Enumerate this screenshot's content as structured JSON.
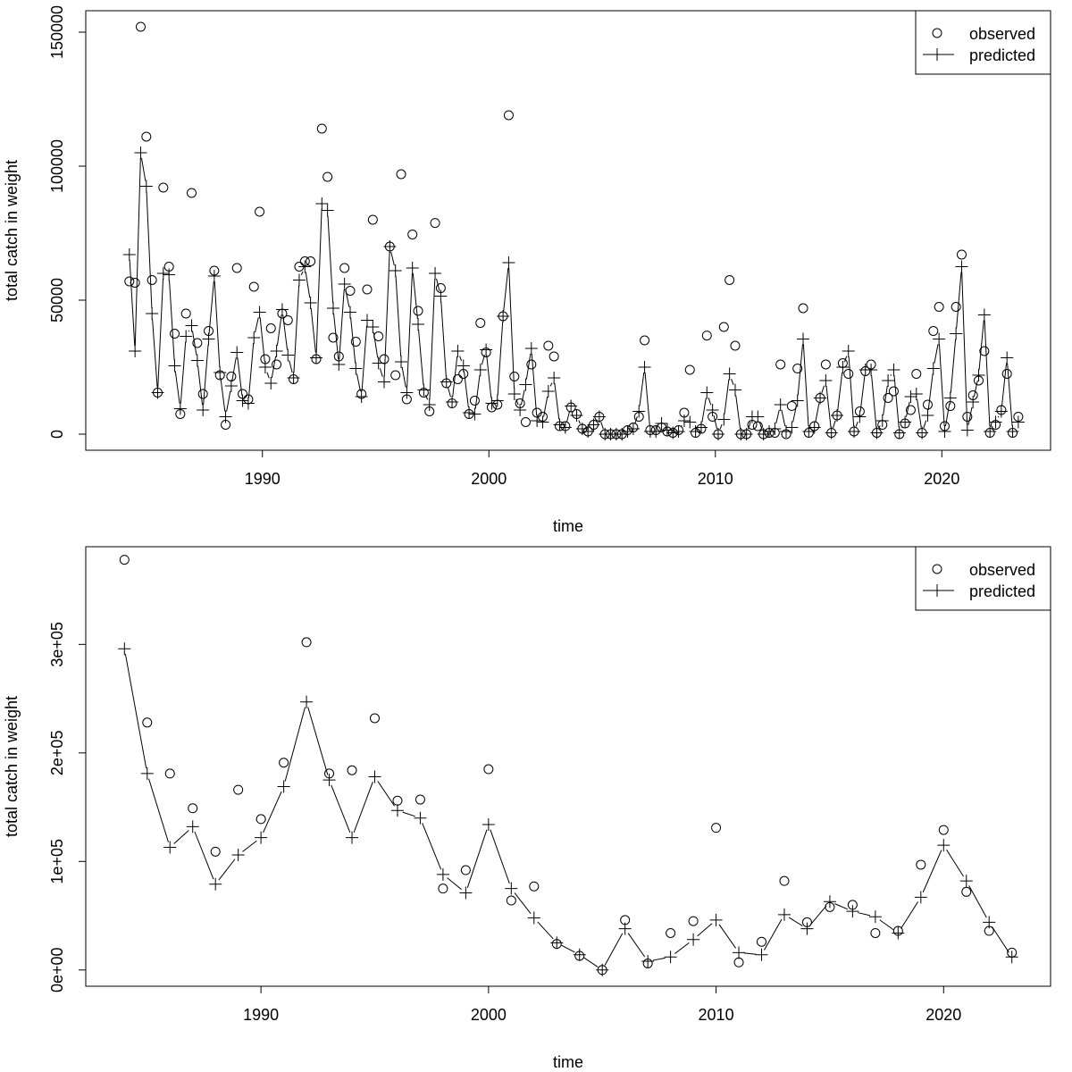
{
  "chart_data": [
    {
      "type": "line",
      "ylabel": "total catch in weight",
      "xlabel": "time",
      "xlim": [
        1982.2,
        2024.8
      ],
      "ylim": [
        -6000,
        158000
      ],
      "x_ticks": [
        1990,
        2000,
        2010,
        2020
      ],
      "x_tick_labels": [
        "1990",
        "2000",
        "2010",
        "2020"
      ],
      "y_ticks": [
        0,
        50000,
        100000,
        150000
      ],
      "y_tick_labels": [
        "0",
        "50000",
        "100000",
        "150000"
      ],
      "legend": {
        "position": "top-right",
        "entries": [
          {
            "label": "observed",
            "marker": "circle",
            "line": false
          },
          {
            "label": "predicted",
            "marker": "plus",
            "line": true
          }
        ]
      },
      "series": [
        {
          "name": "observed",
          "marker": "circle",
          "x": [
            1984.125,
            1984.375,
            1984.625,
            1984.875,
            1985.125,
            1985.375,
            1985.625,
            1985.875,
            1986.125,
            1986.375,
            1986.625,
            1986.875,
            1987.125,
            1987.375,
            1987.625,
            1987.875,
            1988.125,
            1988.375,
            1988.625,
            1988.875,
            1989.125,
            1989.375,
            1989.625,
            1989.875,
            1990.125,
            1990.375,
            1990.625,
            1990.875,
            1991.125,
            1991.375,
            1991.625,
            1991.875,
            1992.125,
            1992.375,
            1992.625,
            1992.875,
            1993.125,
            1993.375,
            1993.625,
            1993.875,
            1994.125,
            1994.375,
            1994.625,
            1994.875,
            1995.125,
            1995.375,
            1995.625,
            1995.875,
            1996.125,
            1996.375,
            1996.625,
            1996.875,
            1997.125,
            1997.375,
            1997.625,
            1997.875,
            1998.125,
            1998.375,
            1998.625,
            1998.875,
            1999.125,
            1999.375,
            1999.625,
            1999.875,
            2000.125,
            2000.375,
            2000.625,
            2000.875,
            2001.125,
            2001.375,
            2001.625,
            2001.875,
            2002.125,
            2002.375,
            2002.625,
            2002.875,
            2003.125,
            2003.375,
            2003.625,
            2003.875,
            2004.125,
            2004.375,
            2004.625,
            2004.875,
            2005.125,
            2005.375,
            2005.625,
            2005.875,
            2006.125,
            2006.375,
            2006.625,
            2006.875,
            2007.125,
            2007.375,
            2007.625,
            2007.875,
            2008.125,
            2008.375,
            2008.625,
            2008.875,
            2009.125,
            2009.375,
            2009.625,
            2009.875,
            2010.125,
            2010.375,
            2010.625,
            2010.875,
            2011.125,
            2011.375,
            2011.625,
            2011.875,
            2012.125,
            2012.375,
            2012.625,
            2012.875,
            2013.125,
            2013.375,
            2013.625,
            2013.875,
            2014.125,
            2014.375,
            2014.625,
            2014.875,
            2015.125,
            2015.375,
            2015.625,
            2015.875,
            2016.125,
            2016.375,
            2016.625,
            2016.875,
            2017.125,
            2017.375,
            2017.625,
            2017.875,
            2018.125,
            2018.375,
            2018.625,
            2018.875,
            2019.125,
            2019.375,
            2019.625,
            2019.875,
            2020.125,
            2020.375,
            2020.625,
            2020.875,
            2021.125,
            2021.375,
            2021.625,
            2021.875,
            2022.125,
            2022.375,
            2022.625,
            2022.875,
            2023.125,
            2023.375
          ],
          "y": [
            57000,
            56500,
            152000,
            111000,
            57500,
            15500,
            92000,
            62500,
            37500,
            7500,
            45000,
            90000,
            34000,
            15000,
            38500,
            61000,
            22000,
            3500,
            21500,
            62000,
            15000,
            13000,
            55000,
            83000,
            28000,
            39500,
            26000,
            45000,
            42500,
            20500,
            62500,
            64500,
            64500,
            28000,
            114000,
            96000,
            36000,
            29000,
            62000,
            53500,
            34500,
            15000,
            54000,
            80000,
            36500,
            28000,
            70000,
            22000,
            97000,
            13000,
            74500,
            46000,
            15500,
            8500,
            78800,
            54500,
            19000,
            11500,
            20500,
            22500,
            7500,
            12500,
            41500,
            30500,
            10000,
            11000,
            44000,
            119000,
            21500,
            11500,
            4500,
            26000,
            8000,
            6500,
            33000,
            29000,
            3000,
            3000,
            10000,
            7500,
            2000,
            1000,
            3500,
            6500,
            0,
            0,
            0,
            0,
            1500,
            2500,
            6500,
            35000,
            1500,
            1500,
            2500,
            1000,
            500,
            1500,
            8000,
            24000,
            500,
            2000,
            36800,
            6500,
            0,
            40000,
            57500,
            33000,
            0,
            0,
            3500,
            3000,
            0,
            500,
            500,
            26000,
            0,
            10500,
            24500,
            47000,
            500,
            3000,
            13500,
            26000,
            500,
            7000,
            26500,
            22500,
            1000,
            8500,
            23500,
            26000,
            500,
            3500,
            13500,
            16000,
            0,
            4000,
            9000,
            22500,
            500,
            11000,
            38500,
            47500,
            3000,
            10500,
            47500,
            67000,
            6500,
            14500,
            20000,
            31000,
            500,
            3500,
            9000,
            22500,
            500,
            6500
          ],
          "color": "#000000"
        },
        {
          "name": "predicted",
          "marker": "plus",
          "x": [
            1984.125,
            1984.375,
            1984.625,
            1984.875,
            1985.125,
            1985.375,
            1985.625,
            1985.875,
            1986.125,
            1986.375,
            1986.625,
            1986.875,
            1987.125,
            1987.375,
            1987.625,
            1987.875,
            1988.125,
            1988.375,
            1988.625,
            1988.875,
            1989.125,
            1989.375,
            1989.625,
            1989.875,
            1990.125,
            1990.375,
            1990.625,
            1990.875,
            1991.125,
            1991.375,
            1991.625,
            1991.875,
            1992.125,
            1992.375,
            1992.625,
            1992.875,
            1993.125,
            1993.375,
            1993.625,
            1993.875,
            1994.125,
            1994.375,
            1994.625,
            1994.875,
            1995.125,
            1995.375,
            1995.625,
            1995.875,
            1996.125,
            1996.375,
            1996.625,
            1996.875,
            1997.125,
            1997.375,
            1997.625,
            1997.875,
            1998.125,
            1998.375,
            1998.625,
            1998.875,
            1999.125,
            1999.375,
            1999.625,
            1999.875,
            2000.125,
            2000.375,
            2000.625,
            2000.875,
            2001.125,
            2001.375,
            2001.625,
            2001.875,
            2002.125,
            2002.375,
            2002.625,
            2002.875,
            2003.125,
            2003.375,
            2003.625,
            2003.875,
            2004.125,
            2004.375,
            2004.625,
            2004.875,
            2005.125,
            2005.375,
            2005.625,
            2005.875,
            2006.125,
            2006.375,
            2006.625,
            2006.875,
            2007.125,
            2007.375,
            2007.625,
            2007.875,
            2008.125,
            2008.375,
            2008.625,
            2008.875,
            2009.125,
            2009.375,
            2009.625,
            2009.875,
            2010.125,
            2010.375,
            2010.625,
            2010.875,
            2011.125,
            2011.375,
            2011.625,
            2011.875,
            2012.125,
            2012.375,
            2012.625,
            2012.875,
            2013.125,
            2013.375,
            2013.625,
            2013.875,
            2014.125,
            2014.375,
            2014.625,
            2014.875,
            2015.125,
            2015.375,
            2015.625,
            2015.875,
            2016.125,
            2016.375,
            2016.625,
            2016.875,
            2017.125,
            2017.375,
            2017.625,
            2017.875,
            2018.125,
            2018.375,
            2018.625,
            2018.875,
            2019.125,
            2019.375,
            2019.625,
            2019.875,
            2020.125,
            2020.375,
            2020.625,
            2020.875,
            2021.125,
            2021.375,
            2021.625,
            2021.875,
            2022.125,
            2022.375,
            2022.625,
            2022.875,
            2023.125,
            2023.375
          ],
          "y": [
            67000,
            31000,
            105000,
            92500,
            45000,
            15500,
            60000,
            59500,
            25500,
            9500,
            36500,
            40500,
            27500,
            9000,
            35500,
            59000,
            23000,
            6500,
            18000,
            30500,
            12500,
            11500,
            36000,
            45500,
            25000,
            19000,
            31000,
            46500,
            29500,
            21000,
            57500,
            62500,
            49000,
            28500,
            86000,
            83500,
            47000,
            26000,
            56000,
            45500,
            24500,
            14000,
            42500,
            40000,
            26500,
            19500,
            70000,
            61000,
            27000,
            15500,
            62000,
            41000,
            16500,
            11000,
            60000,
            51500,
            19500,
            12000,
            31000,
            25500,
            8000,
            7500,
            24000,
            31500,
            11500,
            12500,
            44000,
            64000,
            15000,
            9000,
            18500,
            32000,
            5000,
            4500,
            16000,
            21000,
            3500,
            2500,
            10500,
            7000,
            2000,
            1000,
            3500,
            6500,
            0,
            0,
            0,
            0,
            1000,
            2000,
            8500,
            25000,
            1000,
            1000,
            4000,
            1500,
            500,
            1000,
            5000,
            4500,
            1000,
            2500,
            15500,
            9000,
            0,
            5500,
            22500,
            16500,
            0,
            0,
            6500,
            6500,
            0,
            1000,
            2000,
            11000,
            1000,
            2500,
            12500,
            35500,
            1000,
            2500,
            13500,
            20000,
            500,
            7000,
            25000,
            31000,
            1000,
            6500,
            24000,
            24000,
            500,
            5000,
            20000,
            24000,
            500,
            4500,
            14000,
            15000,
            500,
            7000,
            24500,
            35500,
            1000,
            13500,
            37500,
            62500,
            1500,
            12000,
            22000,
            44500,
            1000,
            4500,
            8500,
            28500,
            1000,
            4500
          ],
          "color": "#000000"
        }
      ]
    },
    {
      "type": "line",
      "ylabel": "total catch in weight",
      "xlabel": "time",
      "xlim": [
        1982.3,
        2024.7
      ],
      "ylim": [
        -15000,
        390000
      ],
      "x_ticks": [
        1990,
        2000,
        2010,
        2020
      ],
      "x_tick_labels": [
        "1990",
        "2000",
        "2010",
        "2020"
      ],
      "y_ticks": [
        0,
        100000,
        200000,
        300000
      ],
      "y_tick_labels": [
        "0e+00",
        "1e+05",
        "2e+05",
        "3e+05"
      ],
      "legend": {
        "position": "top-right",
        "entries": [
          {
            "label": "observed",
            "marker": "circle",
            "line": false
          },
          {
            "label": "predicted",
            "marker": "plus",
            "line": true
          }
        ]
      },
      "series": [
        {
          "name": "observed",
          "marker": "circle",
          "x": [
            1984,
            1985,
            1986,
            1987,
            1988,
            1989,
            1990,
            1991,
            1992,
            1993,
            1994,
            1995,
            1996,
            1997,
            1998,
            1999,
            2000,
            2001,
            2002,
            2003,
            2004,
            2005,
            2006,
            2007,
            2008,
            2009,
            2010,
            2011,
            2012,
            2013,
            2014,
            2015,
            2016,
            2017,
            2018,
            2019,
            2020,
            2021,
            2022,
            2023
          ],
          "y": [
            378000,
            228000,
            181000,
            149000,
            109000,
            166000,
            139000,
            191000,
            302000,
            181000,
            184000,
            232000,
            156000,
            157000,
            75000,
            92000,
            185000,
            64000,
            77000,
            24000,
            13000,
            0,
            46000,
            6000,
            34000,
            45000,
            131000,
            7000,
            26000,
            82000,
            44000,
            58000,
            60000,
            34000,
            36000,
            97000,
            129000,
            72000,
            36000,
            16000
          ],
          "color": "#000000"
        },
        {
          "name": "predicted",
          "marker": "plus",
          "x": [
            1984,
            1985,
            1986,
            1987,
            1988,
            1989,
            1990,
            1991,
            1992,
            1993,
            1994,
            1995,
            1996,
            1997,
            1998,
            1999,
            2000,
            2001,
            2002,
            2003,
            2004,
            2005,
            2006,
            2007,
            2008,
            2009,
            2010,
            2011,
            2012,
            2013,
            2014,
            2015,
            2016,
            2017,
            2018,
            2019,
            2020,
            2021,
            2022,
            2023
          ],
          "y": [
            296000,
            181000,
            113000,
            132000,
            79000,
            106000,
            122000,
            169000,
            247000,
            175000,
            122000,
            178000,
            147000,
            140000,
            88000,
            71000,
            134000,
            75000,
            48000,
            25000,
            14000,
            0,
            38000,
            8000,
            12000,
            28000,
            46000,
            16000,
            14000,
            51000,
            38000,
            63000,
            54000,
            49000,
            34000,
            67000,
            115000,
            82000,
            44000,
            12000
          ],
          "color": "#000000"
        }
      ]
    }
  ]
}
